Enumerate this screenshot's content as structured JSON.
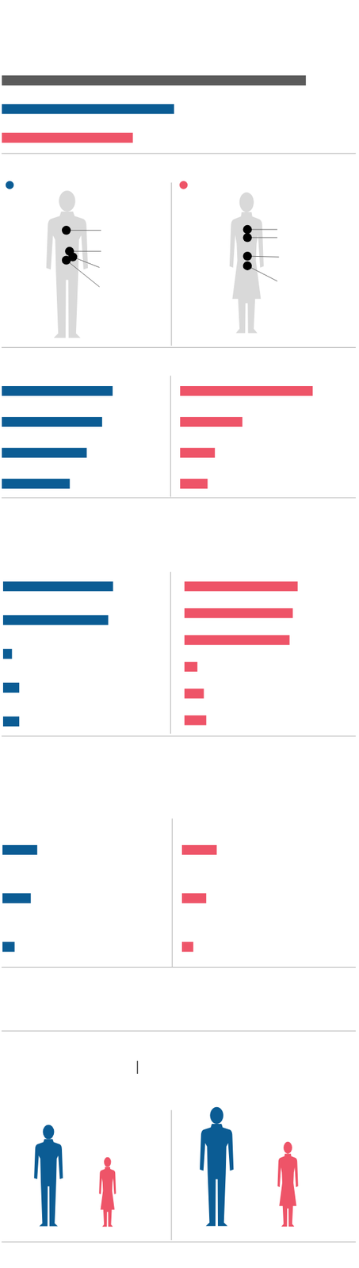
{
  "chart_data": [
    {
      "type": "bar",
      "orientation": "horizontal",
      "tick_labels": false,
      "xlim": [
        0,
        440
      ],
      "categories": [
        null,
        null,
        null
      ],
      "values": [
        376,
        213,
        162
      ],
      "colors": [
        "#5b5b5b",
        "#0b5c94",
        "#ee5468"
      ]
    },
    {
      "type": "bar",
      "orientation": "horizontal",
      "tick_labels": false,
      "xlim": [
        0,
        200
      ],
      "categories": [
        null,
        null,
        null,
        null
      ],
      "values": [
        137,
        124,
        105,
        84
      ],
      "color": "#0b5c94"
    },
    {
      "type": "bar",
      "orientation": "horizontal",
      "tick_labels": false,
      "xlim": [
        0,
        200
      ],
      "categories": [
        null,
        null,
        null,
        null
      ],
      "values": [
        164,
        77,
        43,
        34
      ],
      "color": "#ee5468"
    },
    {
      "type": "bar",
      "orientation": "horizontal",
      "tick_labels": false,
      "xlim": [
        0,
        200
      ],
      "categories": [
        null,
        null,
        null,
        null,
        null
      ],
      "values": [
        136,
        130,
        11,
        20,
        20
      ],
      "color": "#0b5c94"
    },
    {
      "type": "bar",
      "orientation": "horizontal",
      "tick_labels": false,
      "xlim": [
        0,
        200
      ],
      "categories": [
        null,
        null,
        null,
        null,
        null,
        null
      ],
      "values": [
        140,
        134,
        130,
        16,
        24,
        27
      ],
      "color": "#ee5468"
    },
    {
      "type": "bar",
      "orientation": "horizontal",
      "tick_labels": false,
      "xlim": [
        0,
        200
      ],
      "categories": [
        null,
        null,
        null
      ],
      "values": [
        43,
        35,
        15
      ],
      "color": "#0b5c94"
    },
    {
      "type": "bar",
      "orientation": "horizontal",
      "tick_labels": false,
      "xlim": [
        0,
        200
      ],
      "categories": [
        null,
        null,
        null
      ],
      "values": [
        43,
        30,
        14
      ],
      "color": "#ee5468"
    }
  ]
}
